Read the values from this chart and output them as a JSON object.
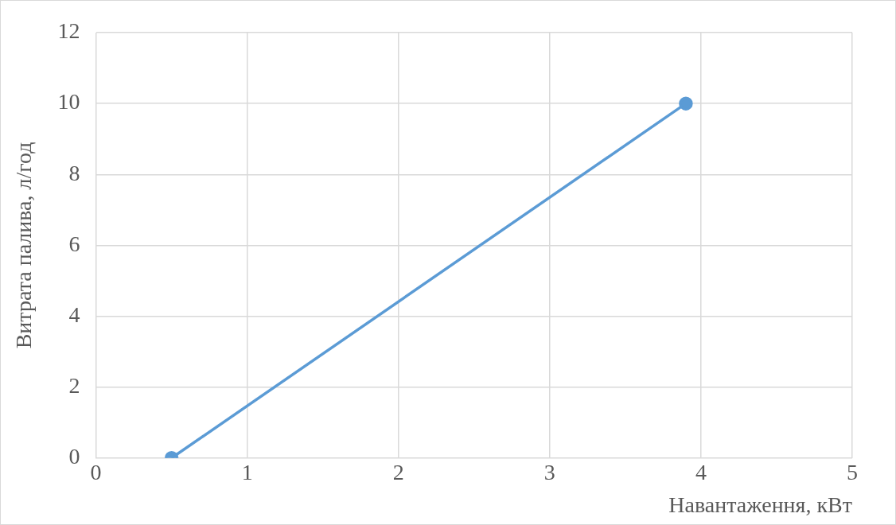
{
  "chart_data": {
    "type": "scatter",
    "xlabel": "Навантаження, кВт",
    "ylabel": "Витрата палива, л/год",
    "series": [
      {
        "type": "line",
        "color": "#5b9bd5",
        "x": [
          0.5,
          3.9
        ],
        "values": [
          0,
          10
        ]
      }
    ],
    "xlim": [
      0,
      5
    ],
    "xticks": [
      0,
      1,
      2,
      3,
      4,
      5
    ],
    "ylim": [
      0,
      12
    ],
    "yticks": [
      0,
      2,
      4,
      6,
      8,
      10,
      12
    ],
    "grid": true,
    "legend": false,
    "marker": "circle",
    "line_style": "solid"
  }
}
